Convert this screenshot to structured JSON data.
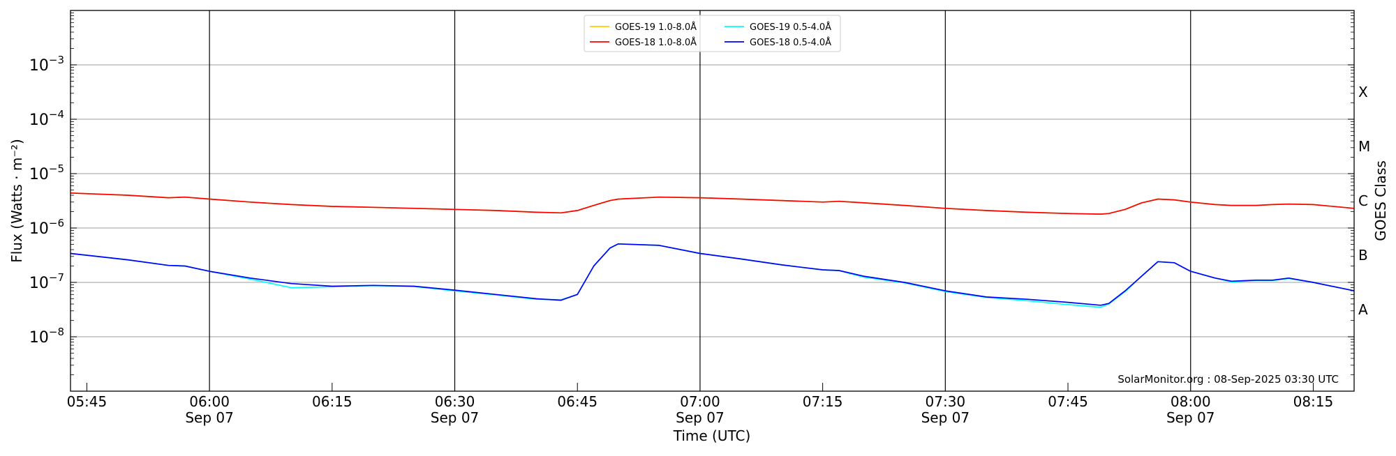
{
  "chart_data": {
    "type": "line",
    "xlabel": "Time (UTC)",
    "ylabel": "Flux (Watts · m⁻²)",
    "y2label": "GOES Class",
    "yscale": "log",
    "ylim": [
      1e-09,
      0.01
    ],
    "xlim": [
      "05:43",
      "08:20"
    ],
    "grid": true,
    "legend_placement": "top-center",
    "annotation": "SolarMonitor.org : 08-Sep-2025 03:30 UTC",
    "y_tick_labels": [
      {
        "exp": -3,
        "label": "10",
        "sup": "−3"
      },
      {
        "exp": -4,
        "label": "10",
        "sup": "−4"
      },
      {
        "exp": -5,
        "label": "10",
        "sup": "−5"
      },
      {
        "exp": -6,
        "label": "10",
        "sup": "−6"
      },
      {
        "exp": -7,
        "label": "10",
        "sup": "−7"
      },
      {
        "exp": -8,
        "label": "10",
        "sup": "−8"
      }
    ],
    "class_labels": [
      {
        "label": "X",
        "exp": -3.5
      },
      {
        "label": "M",
        "exp": -4.5
      },
      {
        "label": "C",
        "exp": -5.5
      },
      {
        "label": "B",
        "exp": -6.5
      },
      {
        "label": "A",
        "exp": -7.5
      }
    ],
    "x_ticks": [
      {
        "time": "05:45",
        "label": "05:45",
        "date": ""
      },
      {
        "time": "06:00",
        "label": "06:00",
        "date": "Sep 07"
      },
      {
        "time": "06:15",
        "label": "06:15",
        "date": ""
      },
      {
        "time": "06:30",
        "label": "06:30",
        "date": "Sep 07"
      },
      {
        "time": "06:45",
        "label": "06:45",
        "date": ""
      },
      {
        "time": "07:00",
        "label": "07:00",
        "date": "Sep 07"
      },
      {
        "time": "07:15",
        "label": "07:15",
        "date": ""
      },
      {
        "time": "07:30",
        "label": "07:30",
        "date": "Sep 07"
      },
      {
        "time": "07:45",
        "label": "07:45",
        "date": ""
      },
      {
        "time": "08:00",
        "label": "08:00",
        "date": "Sep 07"
      },
      {
        "time": "08:15",
        "label": "08:15",
        "date": ""
      }
    ],
    "x": [
      "05:43",
      "05:50",
      "05:55",
      "05:57",
      "06:00",
      "06:05",
      "06:10",
      "06:15",
      "06:20",
      "06:25",
      "06:30",
      "06:35",
      "06:40",
      "06:43",
      "06:45",
      "06:47",
      "06:49",
      "06:50",
      "06:55",
      "07:00",
      "07:05",
      "07:10",
      "07:15",
      "07:17",
      "07:20",
      "07:25",
      "07:30",
      "07:35",
      "07:40",
      "07:45",
      "07:49",
      "07:50",
      "07:52",
      "07:54",
      "07:56",
      "07:58",
      "08:00",
      "08:03",
      "08:05",
      "08:08",
      "08:10",
      "08:12",
      "08:15",
      "08:20"
    ],
    "series": [
      {
        "name": "GOES-19 1.0-8.0Å",
        "color": "#ffcc00",
        "values": [
          4.4e-06,
          4e-06,
          3.6e-06,
          3.7e-06,
          3.4e-06,
          3e-06,
          2.7e-06,
          2.5e-06,
          2.4e-06,
          2.3e-06,
          2.2e-06,
          2.1e-06,
          1.95e-06,
          1.9e-06,
          2.1e-06,
          2.6e-06,
          3.2e-06,
          3.4e-06,
          3.7e-06,
          3.6e-06,
          3.4e-06,
          3.2e-06,
          3e-06,
          3.1e-06,
          2.9e-06,
          2.6e-06,
          2.3e-06,
          2.1e-06,
          1.95e-06,
          1.85e-06,
          1.8e-06,
          1.85e-06,
          2.2e-06,
          2.9e-06,
          3.4e-06,
          3.3e-06,
          3e-06,
          2.7e-06,
          2.6e-06,
          2.6e-06,
          2.7e-06,
          2.75e-06,
          2.7e-06,
          2.3e-06
        ]
      },
      {
        "name": "GOES-18 1.0-8.0Å",
        "color": "#ff0000",
        "values": [
          4.4e-06,
          4e-06,
          3.6e-06,
          3.7e-06,
          3.4e-06,
          3e-06,
          2.7e-06,
          2.5e-06,
          2.4e-06,
          2.3e-06,
          2.2e-06,
          2.1e-06,
          1.95e-06,
          1.9e-06,
          2.1e-06,
          2.6e-06,
          3.2e-06,
          3.4e-06,
          3.7e-06,
          3.6e-06,
          3.4e-06,
          3.2e-06,
          3e-06,
          3.1e-06,
          2.9e-06,
          2.6e-06,
          2.3e-06,
          2.1e-06,
          1.95e-06,
          1.85e-06,
          1.8e-06,
          1.85e-06,
          2.2e-06,
          2.9e-06,
          3.4e-06,
          3.3e-06,
          3e-06,
          2.7e-06,
          2.6e-06,
          2.6e-06,
          2.7e-06,
          2.75e-06,
          2.7e-06,
          2.3e-06
        ]
      },
      {
        "name": "GOES-19 0.5-4.0Å",
        "color": "#00ffff",
        "values": [
          3.4e-07,
          2.6e-07,
          2.05e-07,
          2e-07,
          1.6e-07,
          1.15e-07,
          8e-08,
          8.3e-08,
          8.7e-08,
          8.4e-08,
          7e-08,
          5.9e-08,
          4.9e-08,
          4.8e-08,
          6e-08,
          2e-07,
          4.3e-07,
          5.1e-07,
          4.8e-07,
          3.4e-07,
          2.7e-07,
          2.1e-07,
          1.7e-07,
          1.65e-07,
          1.25e-07,
          9.8e-08,
          6.8e-08,
          5.3e-08,
          4.6e-08,
          3.9e-08,
          3.5e-08,
          4e-08,
          6.8e-08,
          1.3e-07,
          2.4e-07,
          2.3e-07,
          1.6e-07,
          1.2e-07,
          1.02e-07,
          1.08e-07,
          1.08e-07,
          1.18e-07,
          1e-07,
          7e-08
        ]
      },
      {
        "name": "GOES-18 0.5-4.0Å",
        "color": "#0000ff",
        "values": [
          3.4e-07,
          2.6e-07,
          2.05e-07,
          2e-07,
          1.6e-07,
          1.2e-07,
          9.5e-08,
          8.5e-08,
          8.8e-08,
          8.5e-08,
          7.2e-08,
          6e-08,
          5e-08,
          4.7e-08,
          6e-08,
          2e-07,
          4.3e-07,
          5.1e-07,
          4.8e-07,
          3.4e-07,
          2.7e-07,
          2.1e-07,
          1.7e-07,
          1.65e-07,
          1.3e-07,
          1e-07,
          7e-08,
          5.4e-08,
          4.9e-08,
          4.3e-08,
          3.8e-08,
          4.1e-08,
          7e-08,
          1.3e-07,
          2.4e-07,
          2.3e-07,
          1.6e-07,
          1.2e-07,
          1.05e-07,
          1.1e-07,
          1.1e-07,
          1.2e-07,
          1e-07,
          7e-08
        ]
      }
    ]
  }
}
